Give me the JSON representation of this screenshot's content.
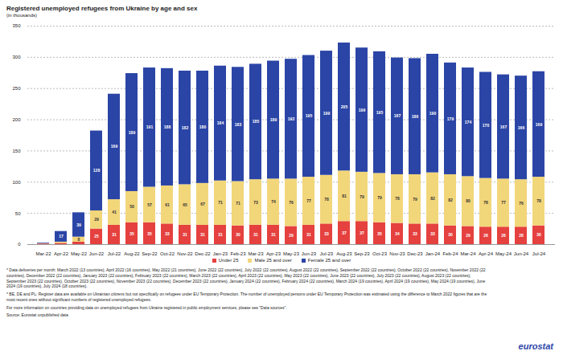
{
  "chart_data": {
    "type": "bar",
    "title": "Registered unemployed refugees from Ukraine by age and sex",
    "subtitle": "(in thousands)",
    "stacked": true,
    "data_labels": true,
    "grid": true,
    "legend": "bottom",
    "categories": [
      "Mar-22",
      "Apr-22",
      "May-22",
      "Jun-22",
      "Jul-22",
      "Aug-22",
      "Sep-22",
      "Oct-22",
      "Nov-22",
      "Dec-22",
      "Jan-23",
      "Feb-23",
      "Mar-23",
      "Apr-23",
      "May-23",
      "Jun-23",
      "Jul-23",
      "Aug-23",
      "Sep-23",
      "Oct-23",
      "Nov-23",
      "Dec-23",
      "Jan-24",
      "Feb-24",
      "Mar-24",
      "Apr-24",
      "May-24",
      "Jun-24",
      "Jul-24"
    ],
    "series": [
      {
        "name": "Under 25",
        "color": "#e5413f",
        "values": [
          1,
          2,
          4,
          25,
          31,
          35,
          35,
          33,
          31,
          31,
          31,
          30,
          31,
          31,
          29,
          31,
          33,
          37,
          37,
          35,
          34,
          33,
          33,
          30,
          29,
          28,
          28,
          28,
          30
        ],
        "value_labels": [
          null,
          null,
          null,
          "25",
          "31",
          "35",
          "35",
          "33",
          "31",
          "31",
          "31",
          "30",
          "31",
          "31",
          "29",
          "31",
          "33",
          "37",
          "37",
          "35",
          "34",
          "33",
          "33",
          "30",
          "29",
          "28",
          "28",
          "28",
          "30"
        ]
      },
      {
        "name": "Male 25 and over",
        "color": "#f2d67a",
        "values": [
          0.5,
          2,
          8,
          29,
          41,
          50,
          57,
          61,
          65,
          67,
          71,
          71,
          73,
          74,
          76,
          77,
          78,
          81,
          79,
          79,
          78,
          79,
          82,
          82,
          80,
          78,
          77,
          76,
          78
        ],
        "value_labels": [
          null,
          null,
          "8",
          "29",
          "41",
          "50",
          "57",
          "61",
          "65",
          "67",
          "71",
          "71",
          "73",
          "74",
          "76",
          "77",
          "78",
          "81",
          "79",
          "79",
          "78",
          "79",
          "82",
          "82",
          "80",
          "78",
          "77",
          "76",
          "78"
        ]
      },
      {
        "name": "Female 25 and over",
        "color": "#2b45a6",
        "values": [
          1,
          17,
          39,
          128,
          169,
          189,
          191,
          188,
          182,
          180,
          184,
          183,
          185,
          189,
          192,
          195,
          199,
          205,
          199,
          195,
          187,
          186,
          190,
          179,
          174,
          170,
          167,
          166,
          169
        ],
        "value_labels": [
          null,
          "17",
          "39",
          "128",
          "169",
          "189",
          "191",
          "188",
          "182",
          "180",
          "184",
          "183",
          "185",
          "189",
          "192",
          "195",
          "199",
          "205",
          "199",
          "195",
          "187",
          "186",
          "190",
          "179",
          "174",
          "170",
          "167",
          "166",
          "169"
        ]
      }
    ],
    "ylim": [
      0,
      350
    ],
    "yticks": [
      0,
      50,
      100,
      150,
      200,
      250,
      300,
      350
    ],
    "notes": [
      "* Data deliveries per month: March 2022 (13 countries), April 2022 (16 countries), May 2022 (21 countries), June 2022 (22 countries), July 2022 (22 countries), August 2022 (22 countries), September 2022 (22 countries), October 2022 (22 countries), November 2022 (22 countries), December 2022 (22 countries), January 2023 (22 countries), February 2023 (22 countries), March 2023 (22 countries), April 2023 (22 countries), May 2023 (22 countries), June 2023 (22 countries), July 2023 (22 countries), August 2023 (22 countries), September 2023 (22 countries), October 2023 (22 countries), November 2023 (22 countries), December 2023 (22 countries), January 2024 (22 countries), February 2024 (22 countries), March 2024 (19 countries), April 2024 (19 countries), May 2024 (19 countries), June 2024 (19 countries), July 2024 (18 countries).",
      "* BE, DE and PL: Register data are available on Ukrainian citizens but not specifically on refugees under EU Temporary Protection. The number of unemployed persons under EU Temporary Protection was estimated using the difference to March 2022 figures that are the most recent ones without significant numbers of registered unemployed refugees.",
      "For more information on countries providing data on unemployed refugees from Ukraine registered in public employment services, please see \"Data sources\".",
      "Source: Eurostat unpublished data"
    ],
    "logo": "eurostat"
  }
}
